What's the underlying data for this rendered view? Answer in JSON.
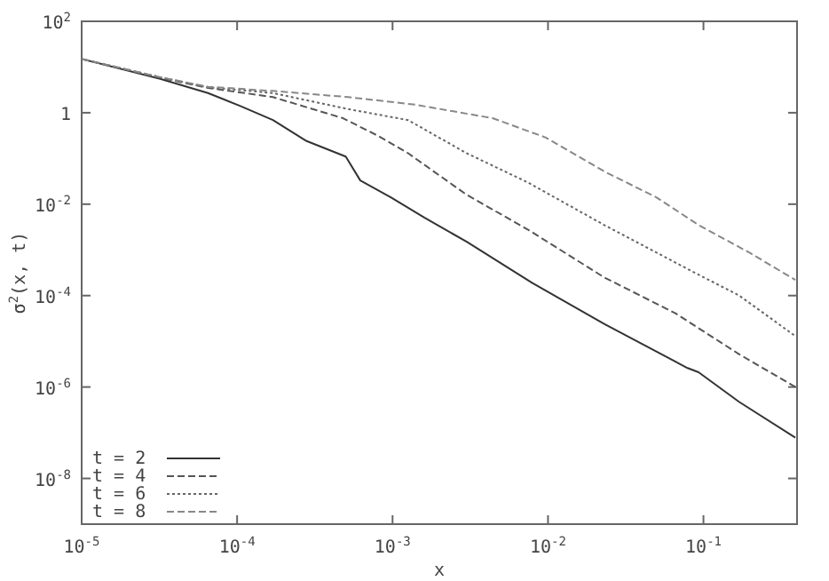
{
  "chart_data": {
    "type": "line",
    "xlabel": "x",
    "ylabel": "σ$^{2}$(x, t)",
    "log": "xy",
    "legend": "bottom left",
    "grid": false,
    "xlim": [
      1e-05,
      0.4
    ],
    "ylim": [
      1e-09,
      100
    ],
    "xticks": [
      {
        "value": 1e-05,
        "label": "10$^{-5}$"
      },
      {
        "value": 0.0001,
        "label": "10$^{-4}$"
      },
      {
        "value": 0.001,
        "label": "10$^{-3}$"
      },
      {
        "value": 0.01,
        "label": "10$^{-2}$"
      },
      {
        "value": 0.1,
        "label": "10$^{-1}$"
      }
    ],
    "yticks": [
      {
        "value": 100,
        "label": "10$^{2}$"
      },
      1,
      {
        "value": 0.01,
        "label": "10$^{-2}$"
      },
      {
        "value": 0.0001,
        "label": "10$^{-4}$"
      },
      {
        "value": 1e-06,
        "label": "10$^{-6}$"
      },
      {
        "value": 1e-08,
        "label": "10$^{-8}$"
      }
    ],
    "series": [
      {
        "name": "t = 2",
        "color": "#333333",
        "line_style": "solid",
        "x": [
          1e-05,
          3.2e-05,
          6.5e-05,
          0.000105,
          0.00017,
          0.00028,
          0.0005,
          0.00062,
          0.00098,
          0.0016,
          0.003,
          0.0079,
          0.023,
          0.079,
          0.093,
          0.17,
          0.39
        ],
        "values": [
          15,
          5.5,
          2.7,
          1.4,
          0.69,
          0.24,
          0.11,
          0.033,
          0.014,
          0.0051,
          0.0015,
          0.00019,
          2.4e-05,
          2.6e-06,
          2.1e-06,
          4.7e-07,
          7.8e-08
        ]
      },
      {
        "name": "t = 4",
        "color": "#555555",
        "line_style": "dashed",
        "x": [
          1e-05,
          3.2e-05,
          6.5e-05,
          0.00017,
          0.00048,
          0.00081,
          0.00126,
          0.003,
          0.0074,
          0.023,
          0.066,
          0.17,
          0.39
        ],
        "values": [
          15,
          5.8,
          3.5,
          2.2,
          0.76,
          0.31,
          0.13,
          0.016,
          0.0028,
          0.00025,
          4.1e-05,
          5.2e-06,
          1e-06
        ]
      },
      {
        "name": "t = 6",
        "color": "#666666",
        "line_style": "dotted",
        "x": [
          1e-05,
          3.2e-05,
          6.5e-05,
          0.00017,
          0.00052,
          0.00126,
          0.003,
          0.0074,
          0.023,
          0.083,
          0.17,
          0.39
        ],
        "values": [
          15,
          6.0,
          3.6,
          2.7,
          1.2,
          0.69,
          0.13,
          0.03,
          0.0035,
          0.00035,
          0.0001,
          1.3e-05
        ]
      },
      {
        "name": "t = 8",
        "color": "#888888",
        "line_style": "dashed",
        "x": [
          1e-05,
          3.2e-05,
          6.5e-05,
          0.00017,
          0.00052,
          0.0014,
          0.0044,
          0.0096,
          0.023,
          0.05,
          0.093,
          0.2,
          0.39
        ],
        "values": [
          15,
          6.0,
          3.7,
          3.0,
          2.2,
          1.5,
          0.76,
          0.29,
          0.052,
          0.014,
          0.0035,
          0.00085,
          0.00022
        ]
      }
    ]
  }
}
